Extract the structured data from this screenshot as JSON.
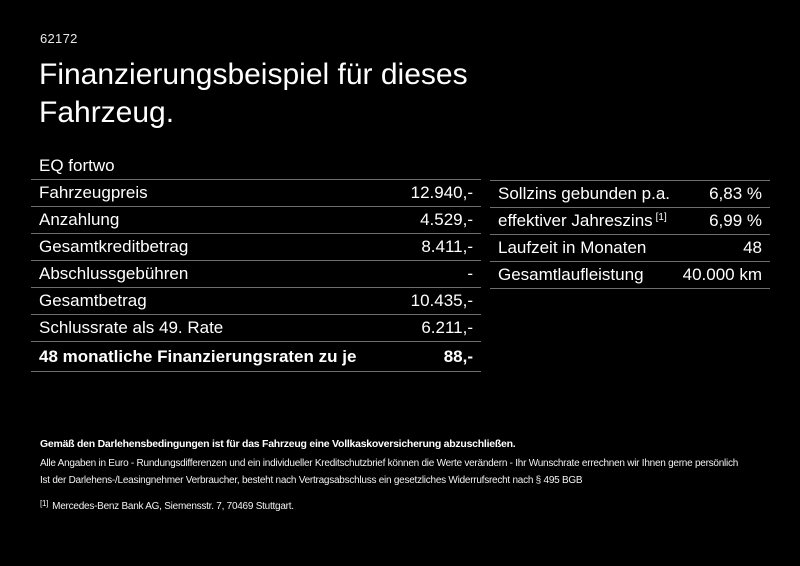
{
  "page": {
    "ref_number": "62172",
    "title": "Finanzierungsbeispiel für dieses Fahrzeug.",
    "model": "EQ fortwo"
  },
  "colors": {
    "background": "#000000",
    "text": "#ffffff",
    "divider": "#6e6e6e"
  },
  "finance_table": {
    "rows": [
      {
        "label": "Fahrzeugpreis",
        "value": "12.940,-"
      },
      {
        "label": "Anzahlung",
        "value": "4.529,-"
      },
      {
        "label": "Gesamtkreditbetrag",
        "value": "8.411,-"
      },
      {
        "label": "Abschlussgebühren",
        "value": "-"
      },
      {
        "label": "Gesamtbetrag",
        "value": "10.435,-"
      },
      {
        "label": "Schlussrate als 49. Rate",
        "value": "6.211,-"
      },
      {
        "label": "48 monatliche Finanzierungsraten zu je",
        "value": "88,-"
      }
    ]
  },
  "conditions_table": {
    "rows": [
      {
        "label": "Sollzins gebunden p.a.",
        "value": "6,83 %"
      },
      {
        "label": "effektiver Jahreszins",
        "marker": "[1]",
        "value": "6,99 %"
      },
      {
        "label": "Laufzeit in Monaten",
        "value": "48"
      },
      {
        "label": "Gesamtlaufleistung",
        "value": "40.000 km"
      }
    ]
  },
  "footer": {
    "line1": "Gemäß den Darlehensbedingungen ist für das Fahrzeug eine Vollkaskoversicherung abzuschließen.",
    "line2": "Alle Angaben in Euro - Rundungsdifferenzen und ein individueller Kreditschutzbrief können die Werte verändern - Ihr Wunschrate errechnen wir Ihnen gerne persönlich",
    "line3": "Ist der Darlehens-/Leasingnehmer Verbraucher, besteht nach Vertragsabschluss ein gesetzliches Widerrufsrecht nach § 495 BGB",
    "footnote_marker": "[1]",
    "footnote": "Mercedes-Benz Bank AG, Siemensstr. 7, 70469 Stuttgart."
  }
}
